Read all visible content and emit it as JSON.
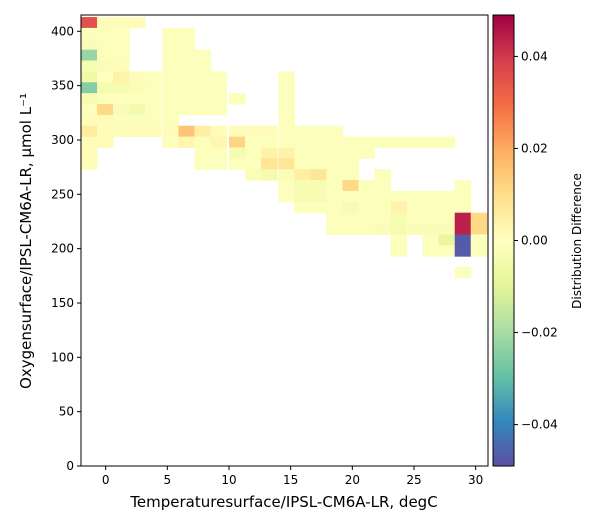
{
  "chart_data": {
    "type": "heatmap",
    "xlabel": "Temperaturesurface/IPSL-CM6A-LR,  degC",
    "ylabel": "Oxygensurface/IPSL-CM6A-LR,  μmol L⁻¹",
    "colorbar_label": "Distribution Difference",
    "colormap": "Spectral_r",
    "xlim": [
      -2,
      31
    ],
    "ylim": [
      0,
      415
    ],
    "clim": [
      -0.049,
      0.049
    ],
    "x_ticks": [
      0,
      5,
      10,
      15,
      20,
      25,
      30
    ],
    "y_ticks": [
      0,
      50,
      100,
      150,
      200,
      250,
      300,
      350,
      400
    ],
    "colorbar_ticks": [
      -0.04,
      -0.02,
      0.0,
      0.02,
      0.04
    ],
    "colorbar_tick_labels": [
      "−0.04",
      "−0.02",
      "0.00",
      "0.02",
      "0.04"
    ],
    "bin_size": {
      "x": 1.31,
      "y": 10.1
    },
    "cells": [
      {
        "x": -2.0,
        "y": 403,
        "v": 0.035
      },
      {
        "x": -0.7,
        "y": 403,
        "v": 0.001
      },
      {
        "x": 0.6,
        "y": 403,
        "v": 0.001
      },
      {
        "x": 1.9,
        "y": 403,
        "v": 0.001
      },
      {
        "x": -2.0,
        "y": 393,
        "v": -0.001
      },
      {
        "x": -0.7,
        "y": 393,
        "v": -0.001
      },
      {
        "x": 0.6,
        "y": 393,
        "v": 0.0
      },
      {
        "x": 4.6,
        "y": 393,
        "v": -0.001
      },
      {
        "x": 5.9,
        "y": 393,
        "v": -0.001
      },
      {
        "x": -2.0,
        "y": 383,
        "v": -0.002
      },
      {
        "x": -0.7,
        "y": 383,
        "v": -0.001
      },
      {
        "x": 0.6,
        "y": 383,
        "v": -0.001
      },
      {
        "x": 4.6,
        "y": 383,
        "v": -0.001
      },
      {
        "x": 5.9,
        "y": 383,
        "v": -0.001
      },
      {
        "x": -2.0,
        "y": 373,
        "v": -0.022
      },
      {
        "x": -0.7,
        "y": 373,
        "v": -0.001
      },
      {
        "x": 0.6,
        "y": 373,
        "v": -0.001
      },
      {
        "x": 4.6,
        "y": 373,
        "v": -0.001
      },
      {
        "x": 5.9,
        "y": 373,
        "v": -0.001
      },
      {
        "x": 7.2,
        "y": 373,
        "v": -0.001
      },
      {
        "x": -2.0,
        "y": 363,
        "v": -0.003
      },
      {
        "x": -0.7,
        "y": 363,
        "v": -0.002
      },
      {
        "x": 0.6,
        "y": 363,
        "v": 0.001
      },
      {
        "x": 4.6,
        "y": 363,
        "v": -0.001
      },
      {
        "x": 5.9,
        "y": 363,
        "v": -0.001
      },
      {
        "x": 7.2,
        "y": 363,
        "v": -0.001
      },
      {
        "x": -2.0,
        "y": 353,
        "v": -0.006
      },
      {
        "x": -0.7,
        "y": 353,
        "v": 0.0
      },
      {
        "x": 0.6,
        "y": 353,
        "v": 0.004
      },
      {
        "x": 1.9,
        "y": 353,
        "v": 0.001
      },
      {
        "x": 3.2,
        "y": 353,
        "v": -0.001
      },
      {
        "x": 4.6,
        "y": 353,
        "v": -0.001
      },
      {
        "x": 5.9,
        "y": 353,
        "v": -0.001
      },
      {
        "x": 7.2,
        "y": 353,
        "v": -0.001
      },
      {
        "x": 8.5,
        "y": 353,
        "v": -0.001
      },
      {
        "x": 14.0,
        "y": 353,
        "v": -0.001
      },
      {
        "x": -2.0,
        "y": 343,
        "v": -0.025
      },
      {
        "x": -0.7,
        "y": 343,
        "v": -0.004
      },
      {
        "x": 0.6,
        "y": 343,
        "v": -0.004
      },
      {
        "x": 1.9,
        "y": 343,
        "v": -0.002
      },
      {
        "x": 3.2,
        "y": 343,
        "v": -0.001
      },
      {
        "x": 4.6,
        "y": 343,
        "v": -0.001
      },
      {
        "x": 5.9,
        "y": 343,
        "v": -0.001
      },
      {
        "x": 7.2,
        "y": 343,
        "v": -0.001
      },
      {
        "x": 8.5,
        "y": 343,
        "v": -0.001
      },
      {
        "x": 14.0,
        "y": 343,
        "v": -0.001
      },
      {
        "x": -2.0,
        "y": 333,
        "v": -0.003
      },
      {
        "x": -0.7,
        "y": 333,
        "v": -0.001
      },
      {
        "x": 0.6,
        "y": 333,
        "v": -0.001
      },
      {
        "x": 1.9,
        "y": 333,
        "v": -0.001
      },
      {
        "x": 3.2,
        "y": 333,
        "v": -0.001
      },
      {
        "x": 4.6,
        "y": 333,
        "v": -0.001
      },
      {
        "x": 5.9,
        "y": 333,
        "v": -0.001
      },
      {
        "x": 7.2,
        "y": 333,
        "v": -0.001
      },
      {
        "x": 8.5,
        "y": 333,
        "v": -0.001
      },
      {
        "x": 10.0,
        "y": 333,
        "v": -0.001
      },
      {
        "x": 14.0,
        "y": 333,
        "v": -0.001
      },
      {
        "x": -2.0,
        "y": 323,
        "v": -0.001
      },
      {
        "x": -0.7,
        "y": 323,
        "v": 0.011
      },
      {
        "x": 0.6,
        "y": 323,
        "v": -0.002
      },
      {
        "x": 1.9,
        "y": 323,
        "v": -0.005
      },
      {
        "x": 3.2,
        "y": 323,
        "v": -0.001
      },
      {
        "x": 4.6,
        "y": 323,
        "v": -0.001
      },
      {
        "x": 5.9,
        "y": 323,
        "v": -0.001
      },
      {
        "x": 7.2,
        "y": 323,
        "v": -0.001
      },
      {
        "x": 8.5,
        "y": 323,
        "v": -0.001
      },
      {
        "x": 14.0,
        "y": 323,
        "v": -0.001
      },
      {
        "x": -2.0,
        "y": 313,
        "v": 0.001
      },
      {
        "x": -0.7,
        "y": 313,
        "v": 0.001
      },
      {
        "x": 0.6,
        "y": 313,
        "v": -0.001
      },
      {
        "x": 1.9,
        "y": 313,
        "v": -0.001
      },
      {
        "x": 3.2,
        "y": 313,
        "v": -0.001
      },
      {
        "x": 4.6,
        "y": 313,
        "v": -0.001
      },
      {
        "x": 14.0,
        "y": 313,
        "v": -0.001
      },
      {
        "x": -2.0,
        "y": 303,
        "v": 0.006
      },
      {
        "x": -0.7,
        "y": 303,
        "v": 0.001
      },
      {
        "x": 0.6,
        "y": 303,
        "v": 0.001
      },
      {
        "x": 1.9,
        "y": 303,
        "v": 0.001
      },
      {
        "x": 3.2,
        "y": 303,
        "v": 0.001
      },
      {
        "x": 4.6,
        "y": 303,
        "v": 0.001
      },
      {
        "x": 5.9,
        "y": 303,
        "v": 0.015
      },
      {
        "x": 7.2,
        "y": 303,
        "v": 0.005
      },
      {
        "x": 8.5,
        "y": 303,
        "v": 0.001
      },
      {
        "x": 10.0,
        "y": 303,
        "v": 0.001
      },
      {
        "x": 11.3,
        "y": 303,
        "v": 0.001
      },
      {
        "x": 12.6,
        "y": 303,
        "v": 0.001
      },
      {
        "x": 14.0,
        "y": 303,
        "v": -0.001
      },
      {
        "x": 15.3,
        "y": 303,
        "v": -0.001
      },
      {
        "x": 16.6,
        "y": 303,
        "v": -0.001
      },
      {
        "x": 17.9,
        "y": 303,
        "v": -0.001
      },
      {
        "x": -2.0,
        "y": 293,
        "v": 0.001
      },
      {
        "x": -0.7,
        "y": 293,
        "v": 0.001
      },
      {
        "x": 4.6,
        "y": 293,
        "v": -0.001
      },
      {
        "x": 5.9,
        "y": 293,
        "v": 0.003
      },
      {
        "x": 7.2,
        "y": 293,
        "v": -0.001
      },
      {
        "x": 8.5,
        "y": 293,
        "v": 0.003
      },
      {
        "x": 10.0,
        "y": 293,
        "v": 0.012
      },
      {
        "x": 11.3,
        "y": 293,
        "v": -0.001
      },
      {
        "x": 12.6,
        "y": 293,
        "v": -0.001
      },
      {
        "x": 14.0,
        "y": 293,
        "v": -0.001
      },
      {
        "x": 15.3,
        "y": 293,
        "v": -0.001
      },
      {
        "x": 16.6,
        "y": 293,
        "v": -0.001
      },
      {
        "x": 17.9,
        "y": 293,
        "v": -0.001
      },
      {
        "x": 19.2,
        "y": 293,
        "v": -0.001
      },
      {
        "x": 20.5,
        "y": 293,
        "v": -0.001
      },
      {
        "x": 21.8,
        "y": 293,
        "v": -0.001
      },
      {
        "x": 23.1,
        "y": 293,
        "v": -0.001
      },
      {
        "x": 24.4,
        "y": 293,
        "v": -0.001
      },
      {
        "x": 25.7,
        "y": 293,
        "v": -0.001
      },
      {
        "x": 27.0,
        "y": 293,
        "v": -0.001
      },
      {
        "x": -2.0,
        "y": 283,
        "v": 0.001
      },
      {
        "x": 7.2,
        "y": 283,
        "v": -0.001
      },
      {
        "x": 8.5,
        "y": 283,
        "v": -0.001
      },
      {
        "x": 10.0,
        "y": 283,
        "v": -0.004
      },
      {
        "x": 11.3,
        "y": 283,
        "v": -0.001
      },
      {
        "x": 12.6,
        "y": 283,
        "v": 0.004
      },
      {
        "x": 14.0,
        "y": 283,
        "v": 0.004
      },
      {
        "x": 15.3,
        "y": 283,
        "v": -0.001
      },
      {
        "x": 16.6,
        "y": 283,
        "v": -0.001
      },
      {
        "x": 17.9,
        "y": 283,
        "v": -0.001
      },
      {
        "x": 19.2,
        "y": 283,
        "v": -0.001
      },
      {
        "x": 20.5,
        "y": 283,
        "v": -0.001
      },
      {
        "x": -2.0,
        "y": 273,
        "v": 0.001
      },
      {
        "x": 7.2,
        "y": 273,
        "v": -0.001
      },
      {
        "x": 8.5,
        "y": 273,
        "v": -0.001
      },
      {
        "x": 10.0,
        "y": 273,
        "v": -0.001
      },
      {
        "x": 11.3,
        "y": 273,
        "v": -0.001
      },
      {
        "x": 12.6,
        "y": 273,
        "v": 0.008
      },
      {
        "x": 14.0,
        "y": 273,
        "v": 0.008
      },
      {
        "x": 15.3,
        "y": 273,
        "v": -0.001
      },
      {
        "x": 16.6,
        "y": 273,
        "v": -0.001
      },
      {
        "x": 17.9,
        "y": 273,
        "v": -0.001
      },
      {
        "x": 19.2,
        "y": 273,
        "v": -0.001
      },
      {
        "x": 11.3,
        "y": 263,
        "v": -0.002
      },
      {
        "x": 12.6,
        "y": 263,
        "v": -0.004
      },
      {
        "x": 14.0,
        "y": 263,
        "v": -0.002
      },
      {
        "x": 15.3,
        "y": 263,
        "v": 0.005
      },
      {
        "x": 16.6,
        "y": 263,
        "v": 0.008
      },
      {
        "x": 17.9,
        "y": 263,
        "v": -0.001
      },
      {
        "x": 19.2,
        "y": 263,
        "v": -0.001
      },
      {
        "x": 21.8,
        "y": 263,
        "v": -0.001
      },
      {
        "x": 14.0,
        "y": 253,
        "v": -0.001
      },
      {
        "x": 15.3,
        "y": 253,
        "v": -0.003
      },
      {
        "x": 16.6,
        "y": 253,
        "v": -0.003
      },
      {
        "x": 17.9,
        "y": 253,
        "v": -0.001
      },
      {
        "x": 19.2,
        "y": 253,
        "v": 0.011
      },
      {
        "x": 20.5,
        "y": 253,
        "v": -0.001
      },
      {
        "x": 21.8,
        "y": 253,
        "v": -0.001
      },
      {
        "x": 28.3,
        "y": 253,
        "v": -0.001
      },
      {
        "x": 14.0,
        "y": 243,
        "v": -0.001
      },
      {
        "x": 15.3,
        "y": 243,
        "v": -0.003
      },
      {
        "x": 16.6,
        "y": 243,
        "v": -0.003
      },
      {
        "x": 17.9,
        "y": 243,
        "v": -0.001
      },
      {
        "x": 19.2,
        "y": 243,
        "v": -0.001
      },
      {
        "x": 20.5,
        "y": 243,
        "v": -0.001
      },
      {
        "x": 21.8,
        "y": 243,
        "v": -0.001
      },
      {
        "x": 23.1,
        "y": 243,
        "v": -0.001
      },
      {
        "x": 24.4,
        "y": 243,
        "v": -0.001
      },
      {
        "x": 25.7,
        "y": 243,
        "v": -0.001
      },
      {
        "x": 27.0,
        "y": 243,
        "v": -0.001
      },
      {
        "x": 28.3,
        "y": 243,
        "v": -0.001
      },
      {
        "x": 15.3,
        "y": 233,
        "v": -0.001
      },
      {
        "x": 16.6,
        "y": 233,
        "v": -0.001
      },
      {
        "x": 17.9,
        "y": 233,
        "v": -0.001
      },
      {
        "x": 19.2,
        "y": 233,
        "v": -0.003
      },
      {
        "x": 20.5,
        "y": 233,
        "v": -0.001
      },
      {
        "x": 21.8,
        "y": 233,
        "v": -0.001
      },
      {
        "x": 23.1,
        "y": 233,
        "v": 0.004
      },
      {
        "x": 24.4,
        "y": 233,
        "v": -0.001
      },
      {
        "x": 25.7,
        "y": 233,
        "v": -0.001
      },
      {
        "x": 27.0,
        "y": 233,
        "v": -0.001
      },
      {
        "x": 28.3,
        "y": 233,
        "v": -0.001
      },
      {
        "x": 17.9,
        "y": 223,
        "v": -0.001
      },
      {
        "x": 19.2,
        "y": 223,
        "v": -0.001
      },
      {
        "x": 20.5,
        "y": 223,
        "v": -0.001
      },
      {
        "x": 21.8,
        "y": 223,
        "v": -0.001
      },
      {
        "x": 23.1,
        "y": 223,
        "v": -0.003
      },
      {
        "x": 24.4,
        "y": 223,
        "v": -0.001
      },
      {
        "x": 25.7,
        "y": 223,
        "v": -0.001
      },
      {
        "x": 27.0,
        "y": 223,
        "v": -0.001
      },
      {
        "x": 28.3,
        "y": 223,
        "v": 0.044
      },
      {
        "x": 29.6,
        "y": 223,
        "v": 0.011
      },
      {
        "x": 17.9,
        "y": 213,
        "v": -0.001
      },
      {
        "x": 19.2,
        "y": 213,
        "v": -0.001
      },
      {
        "x": 20.5,
        "y": 213,
        "v": -0.001
      },
      {
        "x": 21.8,
        "y": 213,
        "v": -0.002
      },
      {
        "x": 23.1,
        "y": 213,
        "v": -0.004
      },
      {
        "x": 24.4,
        "y": 213,
        "v": -0.002
      },
      {
        "x": 25.7,
        "y": 213,
        "v": -0.002
      },
      {
        "x": 27.0,
        "y": 213,
        "v": -0.002
      },
      {
        "x": 28.3,
        "y": 213,
        "v": 0.044
      },
      {
        "x": 29.6,
        "y": 213,
        "v": 0.011
      },
      {
        "x": 23.1,
        "y": 203,
        "v": -0.001
      },
      {
        "x": 25.7,
        "y": 203,
        "v": -0.001
      },
      {
        "x": 27.0,
        "y": 203,
        "v": -0.008
      },
      {
        "x": 28.3,
        "y": 203,
        "v": -0.047
      },
      {
        "x": 29.6,
        "y": 203,
        "v": -0.001
      },
      {
        "x": 23.1,
        "y": 193,
        "v": -0.001
      },
      {
        "x": 25.7,
        "y": 193,
        "v": -0.001
      },
      {
        "x": 27.0,
        "y": 193,
        "v": -0.001
      },
      {
        "x": 28.3,
        "y": 193,
        "v": -0.047
      },
      {
        "x": 29.6,
        "y": 193,
        "v": -0.001
      },
      {
        "x": 28.3,
        "y": 173,
        "v": -0.001
      }
    ]
  }
}
